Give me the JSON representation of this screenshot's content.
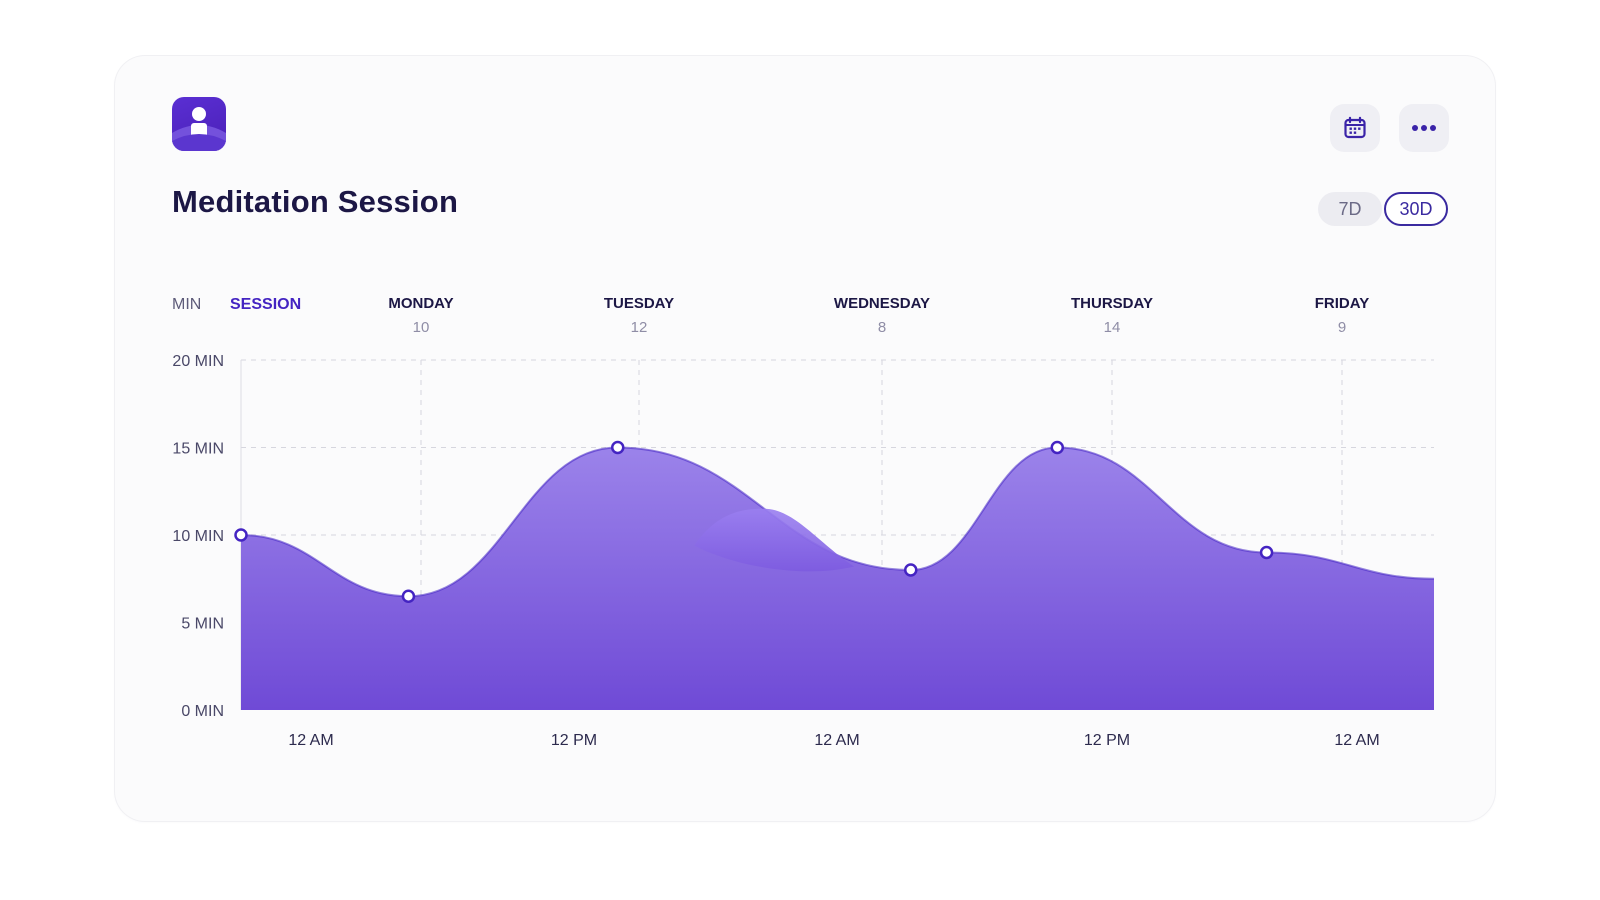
{
  "header": {
    "title": "Meditation Session",
    "app_icon": "meditation-app-icon",
    "calendar_icon": "calendar-icon",
    "more_icon": "more-horizontal-icon"
  },
  "range_toggle": {
    "options": [
      "7D",
      "30D"
    ],
    "selected": "30D"
  },
  "colors": {
    "accent": "#4424c2",
    "area_top": "#9b83ea",
    "area_bottom": "#6f4ad6",
    "title": "#1c1745"
  },
  "chart_data": {
    "type": "area",
    "header_labels": {
      "unit": "MIN",
      "series": "SESSION"
    },
    "days": [
      {
        "name": "MONDAY",
        "value": "10"
      },
      {
        "name": "TUESDAY",
        "value": "12"
      },
      {
        "name": "WEDNESDAY",
        "value": "8"
      },
      {
        "name": "THURSDAY",
        "value": "14"
      },
      {
        "name": "FRIDAY",
        "value": "9"
      }
    ],
    "y_ticks": [
      "0 MIN",
      "5 MIN",
      "10 MIN",
      "15 MIN",
      "20 MIN"
    ],
    "x_ticks": [
      "12 AM",
      "12 PM",
      "12 AM",
      "12 PM",
      "12 AM"
    ],
    "ylim": [
      0,
      20
    ],
    "points": [
      {
        "hour": 0,
        "minutes": 10
      },
      {
        "hour": 16,
        "minutes": 6.5
      },
      {
        "hour": 36,
        "minutes": 15
      },
      {
        "hour": 64,
        "minutes": 8
      },
      {
        "hour": 78,
        "minutes": 15
      },
      {
        "hour": 98,
        "minutes": 9
      }
    ],
    "secondary_bump": {
      "hour": 50,
      "minutes": 11.5
    },
    "grid": true
  }
}
